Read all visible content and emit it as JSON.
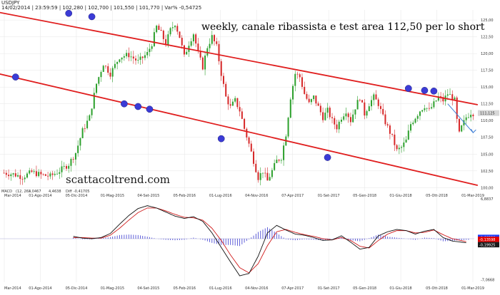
{
  "header": {
    "symbol": "USDJPY",
    "info": "14/02/2014 | 23:59:59 | 102,280 | 102,700 | 101,550 | 101,770 | Var% -0,54725"
  },
  "annotation": {
    "title": "weekly, canale ribassista e test area 112,50 per lo short",
    "watermark": "scattacoltrend.com"
  },
  "colors": {
    "up": "#2ca02c",
    "down": "#d62728",
    "channel": "#e01e1e",
    "touch": "#3b3bd6",
    "grid": "#e6e6e6",
    "macd": "#111111",
    "signal": "#d01c1c",
    "hist": "#3a3ad0",
    "last": "#d7d7d7",
    "macd_badge": "#1e3cff",
    "signal_badge": "#e00000"
  },
  "chart_data": [
    {
      "type": "candlestick",
      "symbol": "USDJPY",
      "timeframe": "weekly",
      "ylim": [
        99.5,
        126.5
      ],
      "y_ticks": [
        "125,00",
        "122,50",
        "120,00",
        "117,50",
        "115,00",
        "112,50",
        "110,00",
        "107,50",
        "105,00",
        "102,50",
        "100,00"
      ],
      "x_ticks": [
        "Mar-2014",
        "01-Ago-2014",
        "05-Dic-2014",
        "01-Mag-2015",
        "04-Set-2015",
        "05-Feb-2016",
        "01-Lug-2016",
        "04-Nov-2016",
        "07-Apr-2017",
        "01-Set-2017",
        "05-Gen-2018",
        "01-Giu-2018",
        "05-Ott-2018",
        "01-Mar-2019"
      ],
      "last_price": "111,125",
      "close_path": [
        [
          0,
          102.2
        ],
        [
          4,
          102.0
        ],
        [
          8,
          101.6
        ],
        [
          12,
          102.3
        ],
        [
          16,
          101.9
        ],
        [
          20,
          101.7
        ],
        [
          24,
          102.5
        ],
        [
          28,
          103.5
        ],
        [
          31,
          105.2
        ],
        [
          34,
          108.5
        ],
        [
          37,
          110.5
        ],
        [
          40,
          115.5
        ],
        [
          43,
          118.5
        ],
        [
          46,
          117.0
        ],
        [
          50,
          119.5
        ],
        [
          54,
          119.8
        ],
        [
          58,
          118.8
        ],
        [
          62,
          120.0
        ],
        [
          64,
          121.5
        ],
        [
          66,
          124.0
        ],
        [
          68,
          123.0
        ],
        [
          70,
          121.5
        ],
        [
          72,
          123.5
        ],
        [
          74,
          124.5
        ],
        [
          76,
          122.5
        ],
        [
          78,
          119.5
        ],
        [
          80,
          121.5
        ],
        [
          82,
          123.0
        ],
        [
          84,
          120.0
        ],
        [
          86,
          118.0
        ],
        [
          88,
          121.0
        ],
        [
          90,
          122.5
        ],
        [
          92,
          121.0
        ],
        [
          94,
          117.0
        ],
        [
          96,
          113.5
        ],
        [
          98,
          112.0
        ],
        [
          100,
          113.0
        ],
        [
          102,
          111.5
        ],
        [
          104,
          108.8
        ],
        [
          106,
          106.5
        ],
        [
          108,
          104.0
        ],
        [
          110,
          101.5
        ],
        [
          112,
          102.5
        ],
        [
          114,
          101.0
        ],
        [
          116,
          102.5
        ],
        [
          118,
          104.0
        ],
        [
          120,
          104.5
        ],
        [
          122,
          108.0
        ],
        [
          124,
          113.5
        ],
        [
          126,
          117.0
        ],
        [
          128,
          116.5
        ],
        [
          130,
          114.0
        ],
        [
          132,
          112.5
        ],
        [
          134,
          113.5
        ],
        [
          136,
          112.0
        ],
        [
          138,
          110.5
        ],
        [
          140,
          111.5
        ],
        [
          142,
          110.0
        ],
        [
          144,
          109.0
        ],
        [
          146,
          110.5
        ],
        [
          148,
          111.5
        ],
        [
          150,
          110.0
        ],
        [
          152,
          112.0
        ],
        [
          154,
          113.5
        ],
        [
          156,
          111.0
        ],
        [
          158,
          112.5
        ],
        [
          160,
          113.5
        ],
        [
          162,
          112.5
        ],
        [
          164,
          110.5
        ],
        [
          166,
          109.0
        ],
        [
          168,
          107.5
        ],
        [
          170,
          105.5
        ],
        [
          172,
          106.0
        ],
        [
          174,
          107.0
        ],
        [
          176,
          109.5
        ],
        [
          178,
          110.5
        ],
        [
          180,
          111.5
        ],
        [
          182,
          112.2
        ],
        [
          184,
          111.5
        ],
        [
          186,
          112.5
        ],
        [
          188,
          113.5
        ],
        [
          190,
          113.0
        ],
        [
          192,
          114.0
        ],
        [
          194,
          113.5
        ],
        [
          195,
          113.0
        ],
        [
          196,
          110.0
        ],
        [
          197,
          108.0
        ],
        [
          198,
          109.0
        ],
        [
          200,
          110.5
        ],
        [
          202,
          111.2
        ],
        [
          203,
          111.1
        ]
      ],
      "channel": {
        "upper": [
          [
            0,
            126.0
          ],
          [
            203,
            112.5
          ]
        ],
        "lower": [
          [
            0,
            116.8
          ],
          [
            203,
            100.5
          ]
        ]
      },
      "touch_points": [
        [
          -15,
          116.5
        ],
        [
          8,
          126.0
        ],
        [
          18,
          125.5
        ],
        [
          32,
          112.5
        ],
        [
          38,
          112.1
        ],
        [
          43,
          111.7
        ],
        [
          74,
          107.3
        ],
        [
          120,
          104.5
        ],
        [
          155,
          114.8
        ],
        [
          162,
          114.5
        ],
        [
          166,
          114.4
        ]
      ],
      "projection": [
        [
          165,
          112.5
        ],
        [
          176,
          108.2
        ]
      ]
    },
    {
      "type": "macd",
      "label": "MACD",
      "params": "(12, 26)",
      "macd_value": "4,0467",
      "signal_value": "4,4638",
      "diff_label": "Diff",
      "diff_value": "-0,41705",
      "ylim": [
        -7.5,
        7.5
      ],
      "y_ticks": [
        "6,8837",
        "-7,0668"
      ],
      "badges": [
        "-0,66330",
        "-0,13598",
        "-0,19925"
      ],
      "macd": [
        [
          0,
          0.4
        ],
        [
          4,
          0.1
        ],
        [
          8,
          0.0
        ],
        [
          12,
          0.2
        ],
        [
          16,
          0.9
        ],
        [
          20,
          2.5
        ],
        [
          24,
          4.0
        ],
        [
          28,
          5.2
        ],
        [
          32,
          5.7
        ],
        [
          36,
          5.3
        ],
        [
          40,
          4.6
        ],
        [
          44,
          3.9
        ],
        [
          48,
          3.5
        ],
        [
          52,
          3.8
        ],
        [
          56,
          3.0
        ],
        [
          60,
          1.0
        ],
        [
          64,
          -1.5
        ],
        [
          68,
          -4.0
        ],
        [
          72,
          -6.4
        ],
        [
          76,
          -6.0
        ],
        [
          80,
          -3.0
        ],
        [
          84,
          1.0
        ],
        [
          88,
          2.3
        ],
        [
          92,
          1.5
        ],
        [
          96,
          0.8
        ],
        [
          100,
          0.6
        ],
        [
          104,
          0.2
        ],
        [
          108,
          -0.3
        ],
        [
          112,
          -0.2
        ],
        [
          116,
          0.5
        ],
        [
          120,
          -0.6
        ],
        [
          124,
          -1.8
        ],
        [
          128,
          -1.5
        ],
        [
          132,
          0.5
        ],
        [
          136,
          1.2
        ],
        [
          140,
          1.6
        ],
        [
          144,
          1.4
        ],
        [
          148,
          0.8
        ],
        [
          152,
          1.3
        ],
        [
          156,
          1.6
        ],
        [
          160,
          0.2
        ],
        [
          164,
          -0.4
        ],
        [
          170,
          -0.7
        ]
      ],
      "signal": [
        [
          0,
          0.2
        ],
        [
          4,
          0.2
        ],
        [
          8,
          0.1
        ],
        [
          12,
          0.1
        ],
        [
          16,
          0.6
        ],
        [
          20,
          1.8
        ],
        [
          24,
          3.2
        ],
        [
          28,
          4.5
        ],
        [
          32,
          5.3
        ],
        [
          36,
          5.3
        ],
        [
          40,
          4.8
        ],
        [
          44,
          4.2
        ],
        [
          48,
          3.7
        ],
        [
          52,
          3.6
        ],
        [
          56,
          3.2
        ],
        [
          60,
          1.8
        ],
        [
          64,
          -0.3
        ],
        [
          68,
          -2.8
        ],
        [
          72,
          -5.0
        ],
        [
          76,
          -5.9
        ],
        [
          80,
          -4.3
        ],
        [
          84,
          -1.2
        ],
        [
          88,
          1.2
        ],
        [
          92,
          1.6
        ],
        [
          96,
          1.1
        ],
        [
          100,
          0.7
        ],
        [
          104,
          0.4
        ],
        [
          108,
          0.0
        ],
        [
          112,
          -0.2
        ],
        [
          116,
          0.2
        ],
        [
          120,
          -0.3
        ],
        [
          124,
          -1.3
        ],
        [
          128,
          -1.6
        ],
        [
          132,
          -0.3
        ],
        [
          136,
          0.8
        ],
        [
          140,
          1.4
        ],
        [
          144,
          1.4
        ],
        [
          148,
          1.0
        ],
        [
          152,
          1.1
        ],
        [
          156,
          1.5
        ],
        [
          160,
          0.7
        ],
        [
          164,
          0.0
        ],
        [
          170,
          -0.5
        ]
      ]
    }
  ]
}
